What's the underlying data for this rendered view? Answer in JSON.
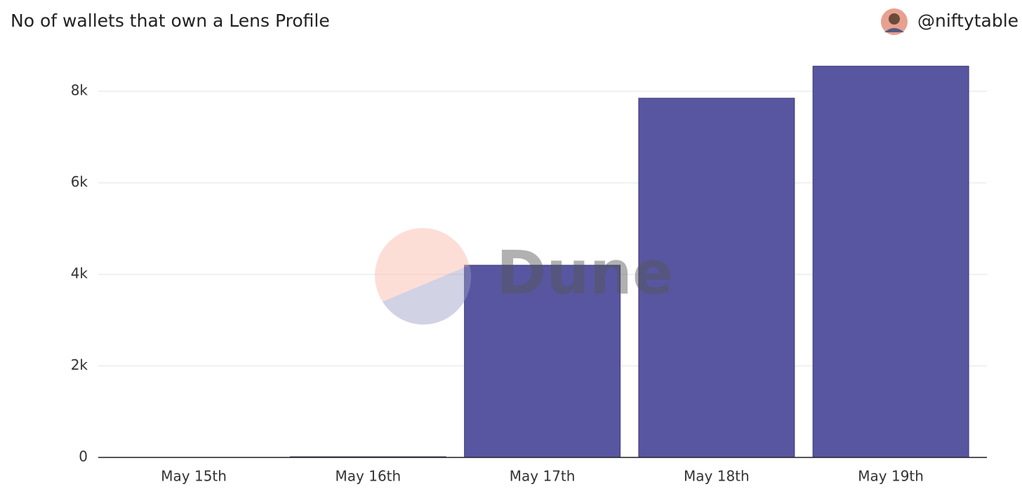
{
  "chart_data": {
    "type": "bar",
    "title": "No of wallets that own a Lens Profile",
    "author": "@niftytable",
    "watermark": "Dune",
    "categories": [
      "May 15th",
      "May 16th",
      "May 17th",
      "May 18th",
      "May 19th"
    ],
    "values": [
      0,
      15,
      4200,
      7850,
      8550
    ],
    "color": "#5856a0",
    "ylim": [
      0,
      8800
    ],
    "yticks": [
      0,
      {
        "value": 2000,
        "label": "2k"
      },
      {
        "value": 4000,
        "label": "4k"
      },
      {
        "value": 6000,
        "label": "6k"
      },
      {
        "value": 8000,
        "label": "8k"
      }
    ],
    "grid": true
  }
}
